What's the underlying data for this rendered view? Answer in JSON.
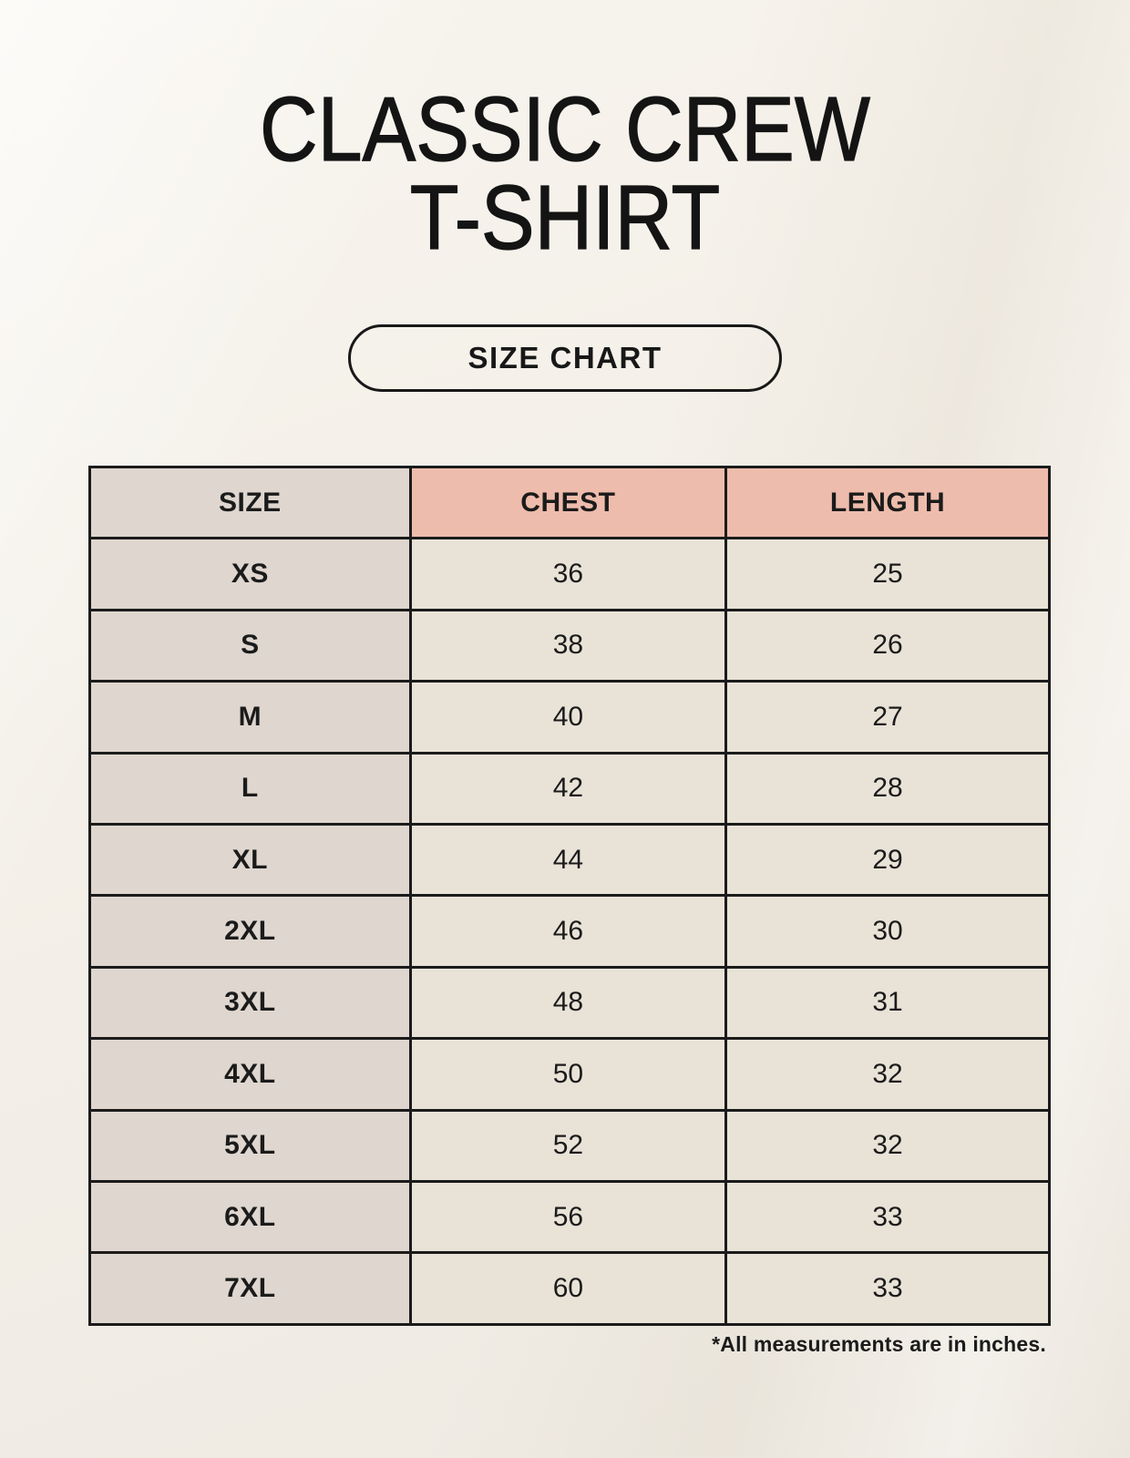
{
  "header": {
    "title_line1": "CLASSIC CREW",
    "title_line2": "T-SHIRT"
  },
  "badge": {
    "label": "SIZE CHART"
  },
  "size_table": {
    "columns": [
      "SIZE",
      "CHEST",
      "LENGTH"
    ],
    "rows": [
      {
        "size": "XS",
        "chest": 36,
        "length": 25
      },
      {
        "size": "S",
        "chest": 38,
        "length": 26
      },
      {
        "size": "M",
        "chest": 40,
        "length": 27
      },
      {
        "size": "L",
        "chest": 42,
        "length": 28
      },
      {
        "size": "XL",
        "chest": 44,
        "length": 29
      },
      {
        "size": "2XL",
        "chest": 46,
        "length": 30
      },
      {
        "size": "3XL",
        "chest": 48,
        "length": 31
      },
      {
        "size": "4XL",
        "chest": 50,
        "length": 32
      },
      {
        "size": "5XL",
        "chest": 52,
        "length": 32
      },
      {
        "size": "6XL",
        "chest": 56,
        "length": 33
      },
      {
        "size": "7XL",
        "chest": 60,
        "length": 33
      }
    ]
  },
  "footer": {
    "note": "*All measurements are in inches."
  },
  "colors": {
    "bg": "#f3efe8",
    "bg-light": "#f7f4ed",
    "header-salmon": "#eebcac",
    "col-taupe": "#ded6cf",
    "cell-cream": "#e9e2d7",
    "border": "#1b1b1b"
  }
}
